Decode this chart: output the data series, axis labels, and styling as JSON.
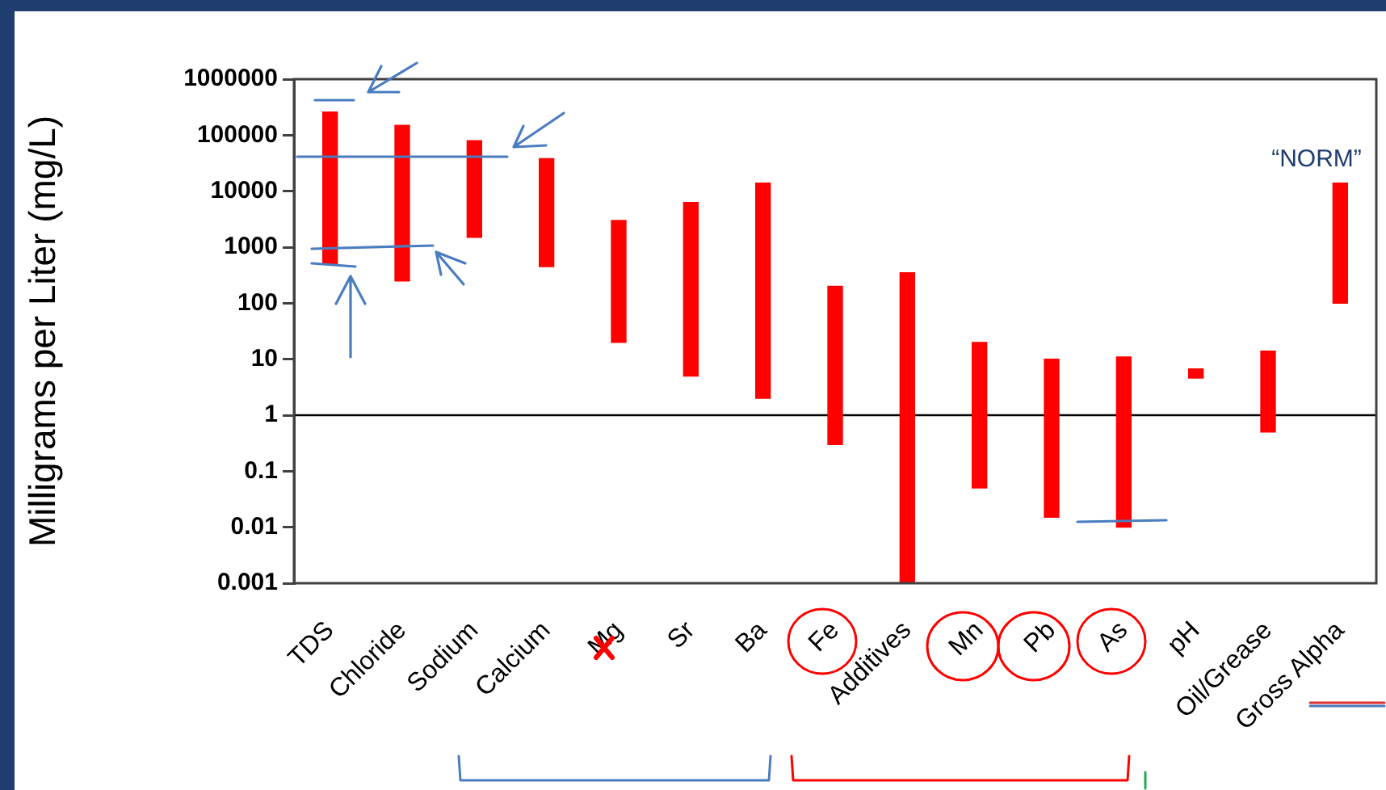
{
  "chart_data": {
    "type": "bar",
    "ylabel": "Milligrams per Liter (mg/L)",
    "categories": [
      "TDS",
      "Chloride",
      "Sodium",
      "Calcium",
      "Mg",
      "Sr",
      "Ba",
      "Fe",
      "Additives",
      "Mn",
      "Pb",
      "As",
      "pH",
      "Oil/Grease",
      "Gross Alpha"
    ],
    "base": [
      500,
      250,
      1500,
      450,
      20,
      5,
      2,
      0.3,
      0.001,
      0.05,
      0.015,
      0.01,
      4.6,
      0.5,
      100
    ],
    "values": [
      259500,
      149750,
      78500,
      37550,
      2980,
      6295,
      13998,
      199.7,
      349.999,
      19.95,
      9.985,
      10.99,
      2.1,
      13.5,
      13900
    ],
    "color": "#ff0000",
    "log": true,
    "ylim": [
      0.001,
      1000000
    ],
    "yticks": [
      0.001,
      0.01,
      0.1,
      1,
      10,
      100,
      1000,
      10000,
      100000,
      1000000
    ],
    "grid": false,
    "legend": false,
    "ref_lines": [
      {
        "axis": "y",
        "value": 1,
        "color": "#000000"
      }
    ],
    "annotations": [
      "“NORM”"
    ]
  }
}
